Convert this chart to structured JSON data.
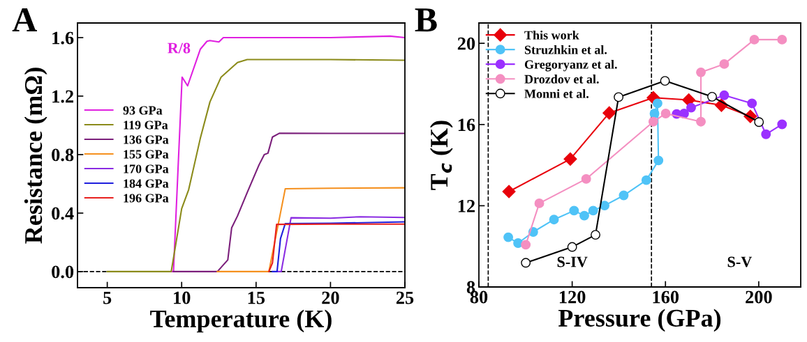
{
  "chart_data": [
    {
      "type": "line",
      "xlabel": "Temperature (K)",
      "ylabel": "Resistance (mΩ)",
      "xlim": [
        3,
        25
      ],
      "ylim": [
        -0.11,
        1.7
      ],
      "xticks": [
        5,
        10,
        15,
        20,
        25
      ],
      "yticks": [
        {
          "value": 0,
          "label": "0.0"
        },
        {
          "value": 0.4,
          "label": "0.4"
        },
        {
          "value": 0.8,
          "label": "0.8"
        },
        {
          "value": 1.2,
          "label": "1.2"
        },
        {
          "value": 1.6,
          "label": "1.6"
        }
      ],
      "grid": false,
      "legend": "left",
      "marker": "none",
      "line_style": "solid",
      "ref_lines": [
        {
          "axis": "y",
          "value": 0,
          "color": "#000000",
          "line_style": "dashed"
        }
      ],
      "annotations": [
        "A",
        "R/8"
      ],
      "series": [
        {
          "name": "93 GPa",
          "color": "#e020e0",
          "x": [
            9.3,
            9.45,
            10.03,
            10.4,
            11.25,
            11.7,
            11.9,
            12.5,
            12.8,
            15,
            20,
            24,
            25
          ],
          "values": [
            0,
            0,
            1.33,
            1.27,
            1.52,
            1.575,
            1.58,
            1.57,
            1.6,
            1.6,
            1.6,
            1.61,
            1.6
          ]
        },
        {
          "name": "119 GPa",
          "color": "#8b8b1a",
          "x": [
            5,
            7,
            9.3,
            10,
            10.47,
            11.25,
            11.9,
            12.65,
            13.75,
            14.4,
            20,
            25
          ],
          "values": [
            0,
            0,
            0,
            0.43,
            0.56,
            0.91,
            1.16,
            1.33,
            1.43,
            1.45,
            1.45,
            1.445
          ]
        },
        {
          "name": "136 GPa",
          "color": "#7b1f7b",
          "x": [
            9.45,
            12.4,
            13.1,
            13.36,
            13.75,
            14.4,
            15.2,
            15.55,
            15.8,
            16.1,
            16.56,
            20,
            25
          ],
          "values": [
            0,
            0,
            0.08,
            0.3,
            0.38,
            0.54,
            0.73,
            0.8,
            0.81,
            0.92,
            0.946,
            0.945,
            0.945
          ]
        },
        {
          "name": "155 GPa",
          "color": "#f5901e",
          "x": [
            12.4,
            15.86,
            16.96,
            20,
            25
          ],
          "values": [
            0,
            0,
            0.566,
            0.57,
            0.573
          ]
        },
        {
          "name": "170 GPa",
          "color": "#8a2be2",
          "x": [
            16.41,
            16.69,
            17.35,
            20,
            22,
            25
          ],
          "values": [
            0,
            0,
            0.368,
            0.365,
            0.375,
            0.37
          ]
        },
        {
          "name": "184 GPa",
          "color": "#1f1fdd",
          "x": [
            16.1,
            16.41,
            16.64,
            16.96,
            20,
            25
          ],
          "values": [
            0,
            0,
            0.225,
            0.328,
            0.33,
            0.34
          ]
        },
        {
          "name": "196 GPa",
          "color": "#e8201e",
          "x": [
            15.86,
            16.1,
            16.38,
            20,
            25
          ],
          "values": [
            0,
            0.059,
            0.323,
            0.325,
            0.325
          ]
        }
      ]
    },
    {
      "type": "line",
      "xlabel": "Pressure (GPa)",
      "ylabel": "T$_{c}$ (K)",
      "xlim": [
        80,
        218
      ],
      "ylim": [
        8,
        21
      ],
      "xticks": [
        80,
        120,
        160,
        200
      ],
      "yticks": [
        8,
        12,
        16,
        20
      ],
      "grid": false,
      "legend": "top left",
      "line_style": "solid",
      "ref_lines": [
        {
          "axis": "x",
          "value": 84,
          "color": "#000000",
          "line_style": "dashed"
        },
        {
          "axis": "x",
          "value": 154,
          "color": "#000000",
          "line_style": "dashed"
        }
      ],
      "annotations": [
        "B",
        "S-IV",
        "S-V"
      ],
      "series": [
        {
          "name": "This work",
          "color": "#e8000b",
          "marker": "diamond",
          "x": [
            92.9,
            119.2,
            135.9,
            154.8,
            170.0,
            184.0,
            196.4
          ],
          "values": [
            12.7,
            14.3,
            16.57,
            17.32,
            17.21,
            16.95,
            16.4
          ]
        },
        {
          "name": "Struzhkin et al.",
          "color": "#4fc3f7",
          "marker": "circle",
          "x": [
            92.6,
            96.8,
            103.3,
            112.2,
            120.8,
            125.2,
            129.0,
            133.9,
            142.1,
            151.8,
            157.0,
            156.6,
            155.3
          ],
          "values": [
            10.45,
            10.16,
            10.71,
            11.32,
            11.76,
            11.51,
            11.76,
            12.01,
            12.51,
            13.26,
            14.23,
            17.04,
            16.54
          ]
        },
        {
          "name": "Gregoryanz et al.",
          "color": "#9b30ff",
          "marker": "circle",
          "x": [
            164.8,
            168.0,
            171.0,
            185.2,
            197.1,
            203.1,
            210.0
          ],
          "values": [
            16.52,
            16.54,
            16.83,
            17.44,
            17.04,
            15.52,
            16.01
          ]
        },
        {
          "name": "Drozdov et al.",
          "color": "#f48fc1",
          "marker": "circle",
          "x": [
            100.1,
            105.9,
            126.0,
            154.8,
            160.1,
            175.2,
            175.2,
            185.2,
            198.1,
            210.0
          ],
          "values": [
            10.08,
            12.12,
            13.32,
            16.14,
            16.54,
            16.14,
            18.57,
            18.98,
            20.18,
            20.18
          ]
        },
        {
          "name": "Monni et al.",
          "color": "#000000",
          "marker": "circle",
          "x": [
            100.1,
            120.0,
            130.0,
            139.9,
            159.8,
            180.0,
            200.1
          ],
          "values": [
            9.19,
            9.97,
            10.57,
            17.35,
            18.15,
            17.37,
            16.12
          ]
        }
      ]
    }
  ]
}
